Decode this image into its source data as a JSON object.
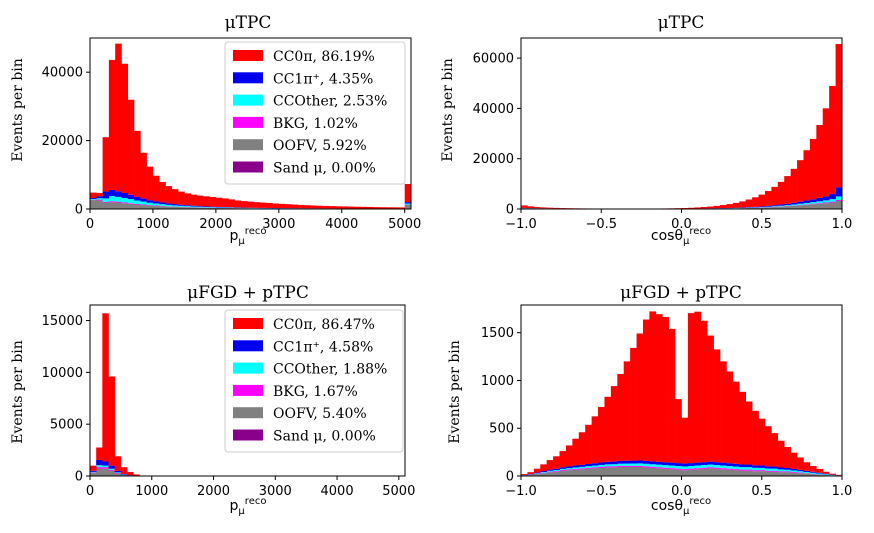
{
  "colors": {
    "CC0pi": "#ff0000",
    "CC1pi": "#0000ee",
    "CCOther": "#00ffff",
    "BKG": "#ff00ff",
    "OOFV": "#808080",
    "Sand": "#8b008b"
  },
  "chart_data": [
    {
      "id": "mutpc_p",
      "type": "bar",
      "stacked_histogram": true,
      "title": "μTPC",
      "xlabel": "p_μ^reco",
      "ylabel": "Events per bin",
      "xlim": [
        0,
        5100
      ],
      "ylim": [
        0,
        50000
      ],
      "bin_width": 100,
      "xticks": [
        0,
        1000,
        2000,
        3000,
        4000,
        5000
      ],
      "xticklabels": [
        "0",
        "1000",
        "2000",
        "3000",
        "4000",
        "5000"
      ],
      "yticks": [
        0,
        20000,
        40000
      ],
      "yticklabels": [
        "0",
        "20000",
        "40000"
      ],
      "legend": {
        "position": "upper right",
        "entries": [
          {
            "key": "CC0pi",
            "label": "CC0π, 86.19%"
          },
          {
            "key": "CC1pi",
            "label": "CC1π⁺, 4.35%"
          },
          {
            "key": "CCOther",
            "label": "CCOther, 2.53%"
          },
          {
            "key": "BKG",
            "label": "BKG, 1.02%"
          },
          {
            "key": "OOFV",
            "label": "OOFV, 5.92%"
          },
          {
            "key": "Sand",
            "label": "Sand μ, 0.00%"
          }
        ]
      },
      "series_order": [
        "Sand",
        "OOFV",
        "BKG",
        "CCOther",
        "CC1pi",
        "CC0pi"
      ],
      "bin_edges_start": 0,
      "series": {
        "OOFV": [
          2600,
          2500,
          1900,
          2000,
          1900,
          1700,
          1500,
          1300,
          1150,
          1000,
          900,
          800,
          700,
          620,
          560,
          500,
          450,
          400,
          360,
          330,
          300,
          280,
          260,
          240,
          220,
          200,
          190,
          180,
          170,
          160,
          150,
          145,
          140,
          135,
          130,
          125,
          120,
          115,
          110,
          105,
          100,
          95,
          90,
          88,
          85,
          82,
          80,
          78,
          76,
          74,
          1200
        ],
        "BKG": [
          100,
          250,
          200,
          280,
          250,
          220,
          200,
          180,
          160,
          140,
          120,
          110,
          100,
          90,
          80,
          70,
          62,
          55,
          50,
          45,
          40,
          38,
          35,
          32,
          30,
          28,
          26,
          24,
          22,
          20,
          19,
          18,
          17,
          16,
          15,
          14,
          13,
          12,
          11,
          10,
          10,
          9,
          9,
          8,
          8,
          7,
          7,
          6,
          6,
          6,
          100
        ],
        "CCOther": [
          200,
          400,
          1000,
          1500,
          1400,
          1300,
          1200,
          1000,
          850,
          700,
          600,
          500,
          420,
          360,
          300,
          260,
          220,
          190,
          165,
          145,
          125,
          110,
          100,
          90,
          82,
          74,
          68,
          62,
          57,
          52,
          48,
          44,
          41,
          38,
          35,
          32,
          30,
          28,
          26,
          24,
          22,
          21,
          20,
          19,
          18,
          17,
          16,
          15,
          14,
          13,
          300
        ],
        "CC1pi": [
          300,
          600,
          2000,
          1800,
          1600,
          1450,
          1250,
          1050,
          880,
          730,
          600,
          500,
          420,
          360,
          300,
          260,
          225,
          195,
          170,
          150,
          130,
          115,
          102,
          92,
          83,
          75,
          68,
          62,
          57,
          52,
          48,
          44,
          41,
          38,
          35,
          32,
          30,
          28,
          26,
          24,
          22,
          21,
          20,
          19,
          18,
          17,
          16,
          15,
          14,
          13,
          400
        ],
        "CC0pi": [
          1600,
          900,
          15900,
          38000,
          43200,
          37800,
          27800,
          19300,
          13400,
          9800,
          7500,
          6000,
          5050,
          4370,
          3840,
          3480,
          3240,
          3060,
          2950,
          2835,
          2705,
          2557,
          2303,
          2046,
          1885,
          1773,
          1648,
          1532,
          1444,
          1316,
          1235,
          1149,
          1051,
          973,
          885,
          821,
          757,
          717,
          677,
          637,
          596,
          554,
          521,
          486,
          459,
          427,
          401,
          386,
          370,
          354,
          5300
        ]
      }
    },
    {
      "id": "mutpc_cos",
      "type": "bar",
      "stacked_histogram": true,
      "title": "μTPC",
      "xlabel": "cosθ_μ^reco",
      "ylabel": "Events per bin",
      "xlim": [
        -1.0,
        1.0
      ],
      "ylim": [
        0,
        68000
      ],
      "bin_width": 0.04,
      "xticks": [
        -1.0,
        -0.5,
        0.0,
        0.5,
        1.0
      ],
      "xticklabels": [
        "−1.0",
        "−0.5",
        "0.0",
        "0.5",
        "1.0"
      ],
      "yticks": [
        0,
        20000,
        40000,
        60000
      ],
      "yticklabels": [
        "0",
        "20000",
        "40000",
        "60000"
      ],
      "series_order": [
        "Sand",
        "OOFV",
        "BKG",
        "CCOther",
        "CC1pi",
        "CC0pi"
      ],
      "bin_edges_start": -1.0,
      "series": {
        "OOFV": [
          300,
          260,
          220,
          190,
          170,
          150,
          130,
          115,
          100,
          90,
          80,
          72,
          65,
          60,
          55,
          52,
          50,
          50,
          52,
          55,
          60,
          65,
          70,
          80,
          90,
          100,
          110,
          125,
          140,
          160,
          180,
          210,
          240,
          280,
          330,
          390,
          460,
          550,
          660,
          800,
          950,
          1100,
          1300,
          1500,
          1700,
          1900,
          2100,
          2300,
          2600,
          3200
        ],
        "BKG": [
          20,
          18,
          16,
          14,
          12,
          11,
          10,
          9,
          8,
          7,
          6,
          6,
          5,
          5,
          5,
          5,
          5,
          5,
          5,
          5,
          6,
          6,
          7,
          8,
          9,
          10,
          11,
          13,
          15,
          17,
          20,
          23,
          27,
          32,
          38,
          45,
          53,
          63,
          75,
          90,
          105,
          120,
          140,
          165,
          190,
          220,
          250,
          290,
          330,
          400
        ],
        "CCOther": [
          40,
          35,
          30,
          26,
          22,
          20,
          18,
          16,
          14,
          12,
          11,
          10,
          9,
          8,
          8,
          8,
          8,
          8,
          9,
          10,
          11,
          12,
          14,
          16,
          18,
          21,
          24,
          28,
          33,
          39,
          46,
          55,
          65,
          78,
          93,
          110,
          130,
          155,
          185,
          220,
          260,
          310,
          370,
          440,
          520,
          610,
          720,
          850,
          1000,
          1400
        ],
        "CC1pi": [
          60,
          52,
          45,
          38,
          32,
          28,
          24,
          21,
          18,
          16,
          14,
          12,
          11,
          10,
          10,
          10,
          10,
          10,
          11,
          12,
          13,
          15,
          17,
          20,
          24,
          28,
          34,
          41,
          50,
          60,
          73,
          88,
          106,
          128,
          155,
          186,
          225,
          270,
          325,
          390,
          470,
          560,
          670,
          800,
          950,
          1130,
          1350,
          1600,
          2000,
          3600
        ],
        "CC0pi": [
          1000,
          700,
          450,
          350,
          280,
          220,
          180,
          150,
          130,
          110,
          95,
          85,
          78,
          72,
          68,
          66,
          64,
          64,
          66,
          70,
          80,
          95,
          115,
          145,
          185,
          240,
          310,
          410,
          540,
          710,
          920,
          1180,
          1500,
          1900,
          2400,
          3050,
          3800,
          4700,
          5900,
          7300,
          9000,
          11000,
          13500,
          16500,
          20000,
          24000,
          29000,
          35000,
          43000,
          57000
        ]
      }
    },
    {
      "id": "mufgd_p",
      "type": "bar",
      "stacked_histogram": true,
      "title": "μFGD + pTPC",
      "xlabel": "p_μ^reco",
      "ylabel": "Events per bin",
      "xlim": [
        0,
        5100
      ],
      "ylim": [
        0,
        16500
      ],
      "bin_width": 100,
      "xticks": [
        0,
        1000,
        2000,
        3000,
        4000,
        5000
      ],
      "xticklabels": [
        "0",
        "1000",
        "2000",
        "3000",
        "4000",
        "5000"
      ],
      "yticks": [
        0,
        5000,
        10000,
        15000
      ],
      "yticklabels": [
        "0",
        "5000",
        "10000",
        "15000"
      ],
      "legend": {
        "position": "upper right",
        "entries": [
          {
            "key": "CC0pi",
            "label": "CC0π, 86.47%"
          },
          {
            "key": "CC1pi",
            "label": "CC1π⁺, 4.58%"
          },
          {
            "key": "CCOther",
            "label": "CCOther, 1.88%"
          },
          {
            "key": "BKG",
            "label": "BKG, 1.67%"
          },
          {
            "key": "OOFV",
            "label": "OOFV, 5.40%"
          },
          {
            "key": "Sand",
            "label": "Sand μ, 0.00%"
          }
        ]
      },
      "series_order": [
        "Sand",
        "OOFV",
        "BKG",
        "CCOther",
        "CC1pi",
        "CC0pi"
      ],
      "bin_edges_start": 0,
      "series": {
        "OOFV": [
          300,
          700,
          700,
          500,
          250,
          100,
          40,
          15,
          5,
          2,
          0,
          0,
          0,
          0,
          0,
          0,
          0,
          0,
          0,
          0,
          0,
          0,
          0,
          0,
          0,
          0,
          0,
          0,
          0,
          0,
          0,
          0,
          0,
          0,
          0,
          0,
          0,
          0,
          0,
          0,
          0,
          0,
          0,
          0,
          0,
          0,
          0,
          0,
          0,
          0,
          0
        ],
        "BKG": [
          50,
          150,
          150,
          100,
          50,
          20,
          8,
          3,
          1,
          0,
          0,
          0,
          0,
          0,
          0,
          0,
          0,
          0,
          0,
          0,
          0,
          0,
          0,
          0,
          0,
          0,
          0,
          0,
          0,
          0,
          0,
          0,
          0,
          0,
          0,
          0,
          0,
          0,
          0,
          0,
          0,
          0,
          0,
          0,
          0,
          0,
          0,
          0,
          0,
          0,
          0
        ],
        "CCOther": [
          50,
          200,
          150,
          100,
          50,
          20,
          8,
          3,
          1,
          0,
          0,
          0,
          0,
          0,
          0,
          0,
          0,
          0,
          0,
          0,
          0,
          0,
          0,
          0,
          0,
          0,
          0,
          0,
          0,
          0,
          0,
          0,
          0,
          0,
          0,
          0,
          0,
          0,
          0,
          0,
          0,
          0,
          0,
          0,
          0,
          0,
          0,
          0,
          0,
          0,
          0
        ],
        "CC1pi": [
          100,
          500,
          400,
          300,
          150,
          60,
          25,
          10,
          4,
          1,
          0,
          0,
          0,
          0,
          0,
          0,
          0,
          0,
          0,
          0,
          0,
          0,
          0,
          0,
          0,
          0,
          0,
          0,
          0,
          0,
          0,
          0,
          0,
          0,
          0,
          0,
          0,
          0,
          0,
          0,
          0,
          0,
          0,
          0,
          0,
          0,
          0,
          0,
          0,
          0,
          0
        ],
        "CC0pi": [
          500,
          1200,
          14300,
          8600,
          1400,
          650,
          300,
          120,
          40,
          12,
          0,
          0,
          0,
          0,
          0,
          0,
          0,
          0,
          0,
          0,
          0,
          0,
          0,
          0,
          0,
          0,
          0,
          0,
          0,
          0,
          0,
          0,
          0,
          0,
          0,
          0,
          0,
          0,
          0,
          0,
          0,
          0,
          0,
          0,
          0,
          0,
          0,
          0,
          0,
          0,
          0
        ]
      }
    },
    {
      "id": "mufgd_cos",
      "type": "bar",
      "stacked_histogram": true,
      "title": "μFGD + pTPC",
      "xlabel": "cosθ_μ^reco",
      "ylabel": "Events per bin",
      "xlim": [
        -1.0,
        1.0
      ],
      "ylim": [
        0,
        1790
      ],
      "bin_width": 0.04,
      "xticks": [
        -1.0,
        -0.5,
        0.0,
        0.5,
        1.0
      ],
      "xticklabels": [
        "−1.0",
        "−0.5",
        "0.0",
        "0.5",
        "1.0"
      ],
      "yticks": [
        0,
        500,
        1000,
        1500
      ],
      "yticklabels": [
        "0",
        "500",
        "1000",
        "1500"
      ],
      "series_order": [
        "Sand",
        "OOFV",
        "BKG",
        "CCOther",
        "CC1pi",
        "CC0pi"
      ],
      "bin_edges_start": -1.0,
      "series": {
        "OOFV": [
          5,
          10,
          20,
          30,
          40,
          45,
          55,
          60,
          65,
          70,
          75,
          80,
          85,
          90,
          90,
          95,
          95,
          95,
          95,
          90,
          85,
          80,
          75,
          70,
          65,
          60,
          65,
          70,
          75,
          80,
          75,
          70,
          65,
          60,
          55,
          55,
          50,
          50,
          45,
          45,
          40,
          40,
          35,
          30,
          25,
          20,
          15,
          10,
          5,
          2
        ],
        "BKG": [
          1,
          2,
          3,
          5,
          6,
          7,
          8,
          9,
          10,
          10,
          11,
          11,
          12,
          12,
          12,
          12,
          12,
          12,
          12,
          12,
          12,
          12,
          12,
          12,
          12,
          12,
          12,
          12,
          12,
          12,
          12,
          12,
          12,
          12,
          12,
          12,
          11,
          11,
          10,
          10,
          9,
          8,
          7,
          6,
          5,
          4,
          3,
          2,
          1,
          1
        ],
        "CCOther": [
          2,
          3,
          5,
          7,
          9,
          10,
          12,
          13,
          15,
          16,
          17,
          18,
          19,
          20,
          21,
          22,
          23,
          24,
          25,
          26,
          26,
          27,
          27,
          28,
          28,
          28,
          28,
          28,
          28,
          28,
          28,
          28,
          27,
          27,
          26,
          26,
          25,
          24,
          23,
          22,
          20,
          18,
          16,
          14,
          12,
          10,
          8,
          6,
          4,
          2
        ],
        "CC1pi": [
          2,
          5,
          8,
          10,
          12,
          14,
          16,
          18,
          20,
          22,
          23,
          25,
          26,
          27,
          28,
          29,
          30,
          30,
          30,
          30,
          30,
          30,
          30,
          30,
          30,
          30,
          30,
          30,
          30,
          30,
          30,
          30,
          30,
          29,
          28,
          27,
          26,
          25,
          23,
          22,
          20,
          18,
          16,
          14,
          12,
          10,
          8,
          6,
          4,
          2
        ],
        "CC0pi": [
          10,
          20,
          40,
          70,
          100,
          130,
          170,
          220,
          280,
          340,
          410,
          490,
          580,
          680,
          790,
          910,
          1040,
          1180,
          1330,
          1480,
          1570,
          1545,
          1520,
          1400,
          670,
          480,
          1570,
          1580,
          1480,
          1320,
          1180,
          1060,
          960,
          860,
          760,
          660,
          570,
          490,
          420,
          350,
          280,
          220,
          170,
          130,
          90,
          60,
          40,
          20,
          10,
          5
        ]
      }
    }
  ]
}
